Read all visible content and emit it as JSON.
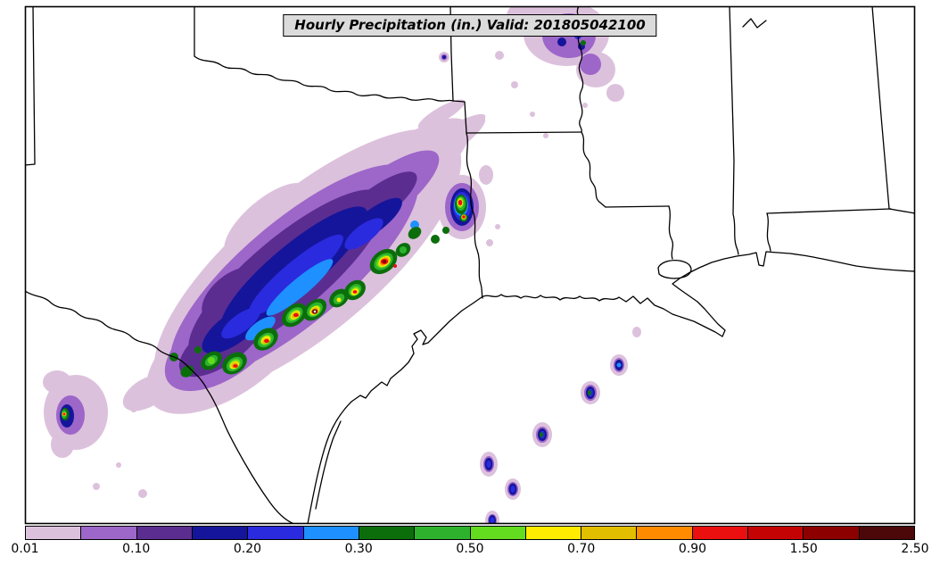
{
  "title": "Hourly Precipitation (in.) Valid: 201805042100",
  "colorbar": {
    "tick_labels": [
      "0.01",
      "0.10",
      "0.20",
      "0.30",
      "0.50",
      "0.70",
      "0.90",
      "1.50",
      "2.50"
    ],
    "segment_colors": [
      "#DCC1DC",
      "#9D66C9",
      "#5C2D91",
      "#15159B",
      "#2A2ADE",
      "#1E90FF",
      "#0B6E0B",
      "#2EB22E",
      "#63DB1E",
      "#FFEC00",
      "#E2BE00",
      "#FF8C00",
      "#EA1010",
      "#C40404",
      "#8C0000",
      "#4C0808"
    ],
    "outline_color": "#000000",
    "background_color": "#FFFFFF"
  }
}
